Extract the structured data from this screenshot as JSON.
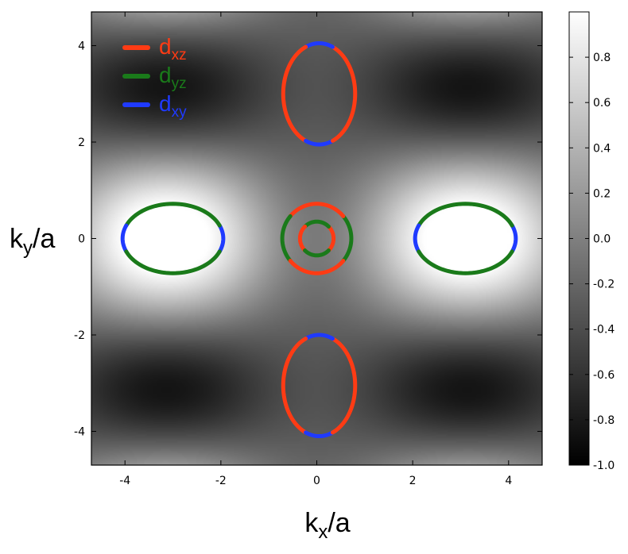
{
  "chart_data": {
    "type": "heatmap",
    "xlabel": {
      "base": "k",
      "sub": "x",
      "rest": "/a"
    },
    "ylabel": {
      "base": "k",
      "sub": "y",
      "rest": "/a"
    },
    "xlim": [
      -4.7,
      4.7
    ],
    "ylim": [
      -4.7,
      4.7
    ],
    "xticks": [
      -4,
      -2,
      0,
      2,
      4
    ],
    "yticks": [
      -4,
      -2,
      0,
      2,
      4
    ],
    "xtick_labels": [
      "-4",
      "-2",
      "0",
      "2",
      "4"
    ],
    "ytick_labels": [
      "-4",
      "-2",
      "0",
      "2",
      "4"
    ],
    "colormap": "gray",
    "colorbar": {
      "range": [
        -1.0,
        1.0
      ],
      "ticks": [
        0.8,
        0.6,
        0.4,
        0.2,
        0.0,
        -0.2,
        -0.4,
        -0.6,
        -0.8,
        -1.0
      ],
      "tick_labels": [
        "0.8",
        "0.6",
        "0.4",
        "0.2",
        "0.0",
        "-0.2",
        "-0.4",
        "-0.6",
        "-0.8",
        "-1.0"
      ]
    },
    "background_function": "0.6*cos(ky)*(1 - 0.4*cos(kx)) - 0.4*cos(kx)*(1 + cos(ky))/2",
    "legend": {
      "placement": "top-left",
      "entries": [
        {
          "base": "d",
          "sub": "xz",
          "color": "#ff3b14"
        },
        {
          "base": "d",
          "sub": "yz",
          "color": "#1a7a1a"
        },
        {
          "base": "d",
          "sub": "xy",
          "color": "#1f3aff"
        }
      ]
    },
    "series": [
      {
        "name": "top-pocket",
        "center": [
          0.05,
          3.0
        ],
        "rx": 0.75,
        "ry": 1.05,
        "segments": [
          {
            "color": "#ff3b14",
            "from": 15,
            "to": 68
          },
          {
            "color": "#1f3aff",
            "from": 68,
            "to": 112
          },
          {
            "color": "#ff3b14",
            "from": 112,
            "to": 165
          },
          {
            "color": "#ff3b14",
            "from": 165,
            "to": 248
          },
          {
            "color": "#1f3aff",
            "from": 248,
            "to": 292
          },
          {
            "color": "#ff3b14",
            "from": 292,
            "to": 375
          }
        ]
      },
      {
        "name": "bottom-pocket",
        "center": [
          0.05,
          -3.05
        ],
        "rx": 0.75,
        "ry": 1.05,
        "segments": [
          {
            "color": "#ff3b14",
            "from": 15,
            "to": 68
          },
          {
            "color": "#1f3aff",
            "from": 68,
            "to": 112
          },
          {
            "color": "#ff3b14",
            "from": 112,
            "to": 165
          },
          {
            "color": "#ff3b14",
            "from": 165,
            "to": 248
          },
          {
            "color": "#1f3aff",
            "from": 248,
            "to": 292
          },
          {
            "color": "#ff3b14",
            "from": 292,
            "to": 375
          }
        ]
      },
      {
        "name": "left-pocket",
        "center": [
          -3.0,
          0.0
        ],
        "rx": 1.05,
        "ry": 0.72,
        "segments": [
          {
            "color": "#1f3aff",
            "from": -22,
            "to": 22
          },
          {
            "color": "#1a7a1a",
            "from": 22,
            "to": 158
          },
          {
            "color": "#1f3aff",
            "from": 158,
            "to": 202
          },
          {
            "color": "#1a7a1a",
            "from": 202,
            "to": 338
          }
        ]
      },
      {
        "name": "right-pocket",
        "center": [
          3.1,
          0.0
        ],
        "rx": 1.05,
        "ry": 0.72,
        "segments": [
          {
            "color": "#1f3aff",
            "from": -22,
            "to": 22
          },
          {
            "color": "#1a7a1a",
            "from": 22,
            "to": 158
          },
          {
            "color": "#1f3aff",
            "from": 158,
            "to": 202
          },
          {
            "color": "#1a7a1a",
            "from": 202,
            "to": 338
          }
        ]
      },
      {
        "name": "outer-gamma-pocket",
        "center": [
          0.0,
          0.0
        ],
        "rx": 0.72,
        "ry": 0.72,
        "segments": [
          {
            "color": "#1a7a1a",
            "from": -40,
            "to": 40
          },
          {
            "color": "#ff3b14",
            "from": 40,
            "to": 140
          },
          {
            "color": "#1a7a1a",
            "from": 140,
            "to": 220
          },
          {
            "color": "#ff3b14",
            "from": 220,
            "to": 320
          }
        ]
      },
      {
        "name": "inner-gamma-pocket",
        "center": [
          0.0,
          0.0
        ],
        "rx": 0.35,
        "ry": 0.35,
        "segments": [
          {
            "color": "#ff3b14",
            "from": -45,
            "to": 45
          },
          {
            "color": "#1a7a1a",
            "from": 45,
            "to": 135
          },
          {
            "color": "#ff3b14",
            "from": 135,
            "to": 225
          },
          {
            "color": "#1a7a1a",
            "from": 225,
            "to": 315
          }
        ]
      }
    ]
  }
}
